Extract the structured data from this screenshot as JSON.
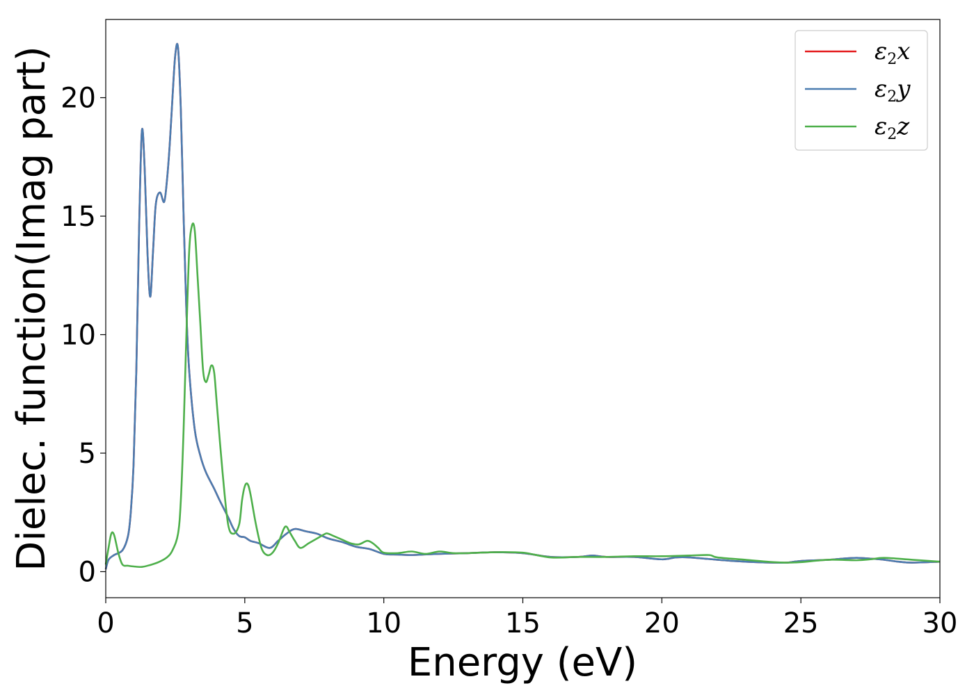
{
  "chart_data": {
    "type": "line",
    "xlabel": "Energy (eV)",
    "ylabel": "Dielec. function(Imag part)",
    "xlim": [
      0,
      30
    ],
    "ylim": [
      -1.1,
      23.3
    ],
    "xticks": [
      0,
      5,
      10,
      15,
      20,
      25,
      30
    ],
    "yticks": [
      0,
      5,
      10,
      15,
      20
    ],
    "grid": false,
    "legend_position": "top-right",
    "series": [
      {
        "name": "ε2x",
        "legend_main": "ε",
        "legend_sub": "2",
        "legend_tail": "x",
        "color": "#e41a1c",
        "x": [
          0,
          0.1,
          0.3,
          0.6,
          0.8,
          0.9,
          1.0,
          1.1,
          1.2,
          1.3,
          1.4,
          1.5,
          1.6,
          1.7,
          1.8,
          1.95,
          2.1,
          2.2,
          2.3,
          2.4,
          2.5,
          2.6,
          2.7,
          2.8,
          2.9,
          3.0,
          3.2,
          3.4,
          3.6,
          3.9,
          4.1,
          4.4,
          4.6,
          4.8,
          5.0,
          5.2,
          5.5,
          5.9,
          6.2,
          6.5,
          6.8,
          7.2,
          7.6,
          8.0,
          8.5,
          9.0,
          9.5,
          10.0,
          10.5,
          11.0,
          12.0,
          13.0,
          14.0,
          15.0,
          16.0,
          17.0,
          17.5,
          18.0,
          19.0,
          20.0,
          20.5,
          21.0,
          22.0,
          23.0,
          24.0,
          24.5,
          25.0,
          26.0,
          26.5,
          27.0,
          27.5,
          28.0,
          28.5,
          29.0,
          30.0
        ],
        "y": [
          0.1,
          0.5,
          0.7,
          0.9,
          1.5,
          2.5,
          4.5,
          8.5,
          14.5,
          18.6,
          17.0,
          13.5,
          11.6,
          13.5,
          15.5,
          16.0,
          15.6,
          16.5,
          18.0,
          20.0,
          21.8,
          22.1,
          19.5,
          15.0,
          11.0,
          8.5,
          6.0,
          4.9,
          4.2,
          3.5,
          3.0,
          2.3,
          1.8,
          1.5,
          1.45,
          1.3,
          1.2,
          1.0,
          1.3,
          1.6,
          1.8,
          1.7,
          1.6,
          1.4,
          1.25,
          1.05,
          0.95,
          0.75,
          0.72,
          0.7,
          0.75,
          0.78,
          0.82,
          0.78,
          0.62,
          0.62,
          0.68,
          0.62,
          0.62,
          0.52,
          0.6,
          0.6,
          0.5,
          0.42,
          0.38,
          0.38,
          0.45,
          0.5,
          0.55,
          0.58,
          0.55,
          0.5,
          0.42,
          0.38,
          0.42
        ]
      },
      {
        "name": "ε2y",
        "legend_main": "ε",
        "legend_sub": "2",
        "legend_tail": "y",
        "color": "#4a7cb0",
        "x": [
          0,
          0.1,
          0.3,
          0.6,
          0.8,
          0.9,
          1.0,
          1.1,
          1.2,
          1.3,
          1.4,
          1.5,
          1.6,
          1.7,
          1.8,
          1.95,
          2.1,
          2.2,
          2.3,
          2.4,
          2.5,
          2.6,
          2.7,
          2.8,
          2.9,
          3.0,
          3.2,
          3.4,
          3.6,
          3.9,
          4.1,
          4.4,
          4.6,
          4.8,
          5.0,
          5.2,
          5.5,
          5.9,
          6.2,
          6.5,
          6.8,
          7.2,
          7.6,
          8.0,
          8.5,
          9.0,
          9.5,
          10.0,
          10.5,
          11.0,
          12.0,
          13.0,
          14.0,
          15.0,
          16.0,
          17.0,
          17.5,
          18.0,
          19.0,
          20.0,
          20.5,
          21.0,
          22.0,
          23.0,
          24.0,
          24.5,
          25.0,
          26.0,
          26.5,
          27.0,
          27.5,
          28.0,
          28.5,
          29.0,
          30.0
        ],
        "y": [
          0.1,
          0.5,
          0.7,
          0.9,
          1.5,
          2.5,
          4.5,
          8.5,
          14.5,
          18.6,
          17.0,
          13.5,
          11.6,
          13.5,
          15.5,
          16.0,
          15.6,
          16.5,
          18.0,
          20.0,
          21.8,
          22.1,
          19.5,
          15.0,
          11.0,
          8.5,
          6.0,
          4.9,
          4.2,
          3.5,
          3.0,
          2.3,
          1.8,
          1.5,
          1.45,
          1.3,
          1.2,
          1.0,
          1.3,
          1.6,
          1.8,
          1.7,
          1.6,
          1.4,
          1.25,
          1.05,
          0.95,
          0.75,
          0.72,
          0.7,
          0.75,
          0.78,
          0.82,
          0.78,
          0.62,
          0.62,
          0.68,
          0.62,
          0.62,
          0.52,
          0.6,
          0.6,
          0.5,
          0.42,
          0.38,
          0.38,
          0.45,
          0.5,
          0.55,
          0.58,
          0.55,
          0.5,
          0.42,
          0.38,
          0.42
        ]
      },
      {
        "name": "ε2z",
        "legend_main": "ε",
        "legend_sub": "2",
        "legend_tail": "z",
        "color": "#4daf4a",
        "x": [
          0,
          0.1,
          0.2,
          0.3,
          0.45,
          0.6,
          0.8,
          1.0,
          1.3,
          1.6,
          1.9,
          2.2,
          2.4,
          2.6,
          2.7,
          2.8,
          2.9,
          3.0,
          3.1,
          3.2,
          3.3,
          3.4,
          3.5,
          3.6,
          3.7,
          3.8,
          3.9,
          4.0,
          4.2,
          4.4,
          4.6,
          4.8,
          4.9,
          5.0,
          5.1,
          5.2,
          5.4,
          5.6,
          5.8,
          6.0,
          6.2,
          6.4,
          6.5,
          6.6,
          6.8,
          7.0,
          7.3,
          7.6,
          7.9,
          8.0,
          8.2,
          8.5,
          8.8,
          9.1,
          9.4,
          9.6,
          9.8,
          10.0,
          10.5,
          11.0,
          11.5,
          12.0,
          12.5,
          13.0,
          14.0,
          15.0,
          16.0,
          17.0,
          18.0,
          19.0,
          20.0,
          21.0,
          21.7,
          22.0,
          23.0,
          24.0,
          24.5,
          25.0,
          26.0,
          27.0,
          27.5,
          28.0,
          29.0,
          30.0
        ],
        "y": [
          0.3,
          1.0,
          1.6,
          1.55,
          0.8,
          0.3,
          0.25,
          0.22,
          0.2,
          0.28,
          0.4,
          0.6,
          0.9,
          1.6,
          3.0,
          6.0,
          10.0,
          13.5,
          14.6,
          14.4,
          12.5,
          10.5,
          8.5,
          8.0,
          8.3,
          8.7,
          8.4,
          7.0,
          4.2,
          2.0,
          1.6,
          2.0,
          3.0,
          3.6,
          3.7,
          3.3,
          2.0,
          1.0,
          0.7,
          0.8,
          1.2,
          1.8,
          1.9,
          1.7,
          1.3,
          1.0,
          1.2,
          1.4,
          1.6,
          1.6,
          1.5,
          1.35,
          1.2,
          1.15,
          1.3,
          1.2,
          1.0,
          0.8,
          0.78,
          0.85,
          0.75,
          0.85,
          0.78,
          0.78,
          0.82,
          0.8,
          0.6,
          0.62,
          0.62,
          0.65,
          0.65,
          0.68,
          0.7,
          0.6,
          0.5,
          0.4,
          0.38,
          0.4,
          0.5,
          0.48,
          0.52,
          0.58,
          0.5,
          0.42
        ]
      }
    ]
  }
}
